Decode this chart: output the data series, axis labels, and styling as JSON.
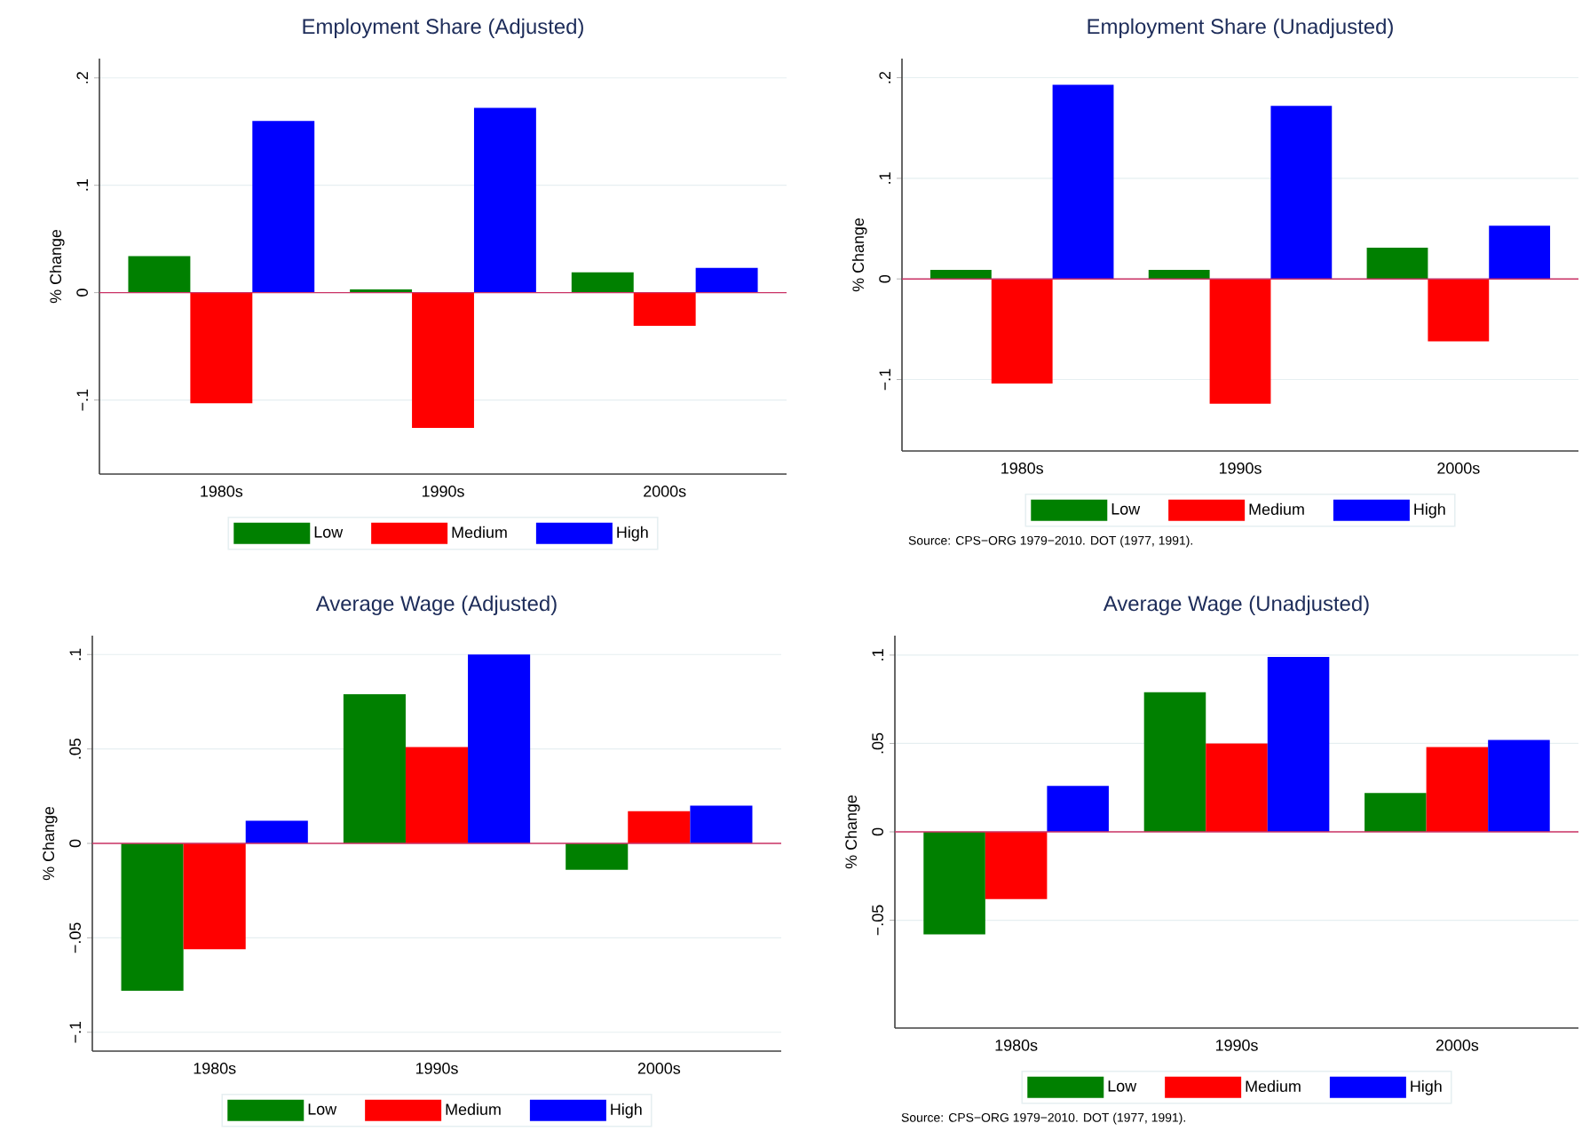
{
  "chart_data": [
    {
      "type": "bar",
      "title": "Employment Share (Adjusted)",
      "ylabel": "% Change",
      "categories": [
        "1980s",
        "1990s",
        "2000s"
      ],
      "series": [
        {
          "name": "Low",
          "color": "#008000",
          "values": [
            0.034,
            0.003,
            0.019
          ]
        },
        {
          "name": "Medium",
          "color": "#ff0000",
          "values": [
            -0.103,
            -0.126,
            -0.031
          ]
        },
        {
          "name": "High",
          "color": "#0000ff",
          "values": [
            0.16,
            0.172,
            0.023
          ]
        }
      ],
      "ylim": [
        -0.169,
        0.218
      ],
      "yticks": [
        {
          "value": -0.1,
          "label": "−.1"
        },
        0,
        {
          "value": 0.1,
          "label": ".1"
        },
        {
          "value": 0.2,
          "label": ".2"
        }
      ],
      "ref_lines": [
        {
          "axis": "y",
          "value": 0,
          "color": "#cc3366"
        }
      ],
      "grid": "y",
      "legend": "bottom"
    },
    {
      "type": "bar",
      "title": "Employment Share (Unadjusted)",
      "ylabel": "% Change",
      "categories": [
        "1980s",
        "1990s",
        "2000s"
      ],
      "series": [
        {
          "name": "Low",
          "color": "#008000",
          "values": [
            0.009,
            0.009,
            0.031
          ]
        },
        {
          "name": "Medium",
          "color": "#ff0000",
          "values": [
            -0.104,
            -0.124,
            -0.062
          ]
        },
        {
          "name": "High",
          "color": "#0000ff",
          "values": [
            0.193,
            0.172,
            0.053
          ]
        }
      ],
      "ylim": [
        -0.171,
        0.219
      ],
      "yticks": [
        {
          "value": -0.1,
          "label": "−.1"
        },
        0,
        {
          "value": 0.1,
          "label": ".1"
        },
        {
          "value": 0.2,
          "label": ".2"
        }
      ],
      "ref_lines": [
        {
          "axis": "y",
          "value": 0,
          "color": "#cc3366"
        }
      ],
      "grid": "y",
      "legend": "bottom",
      "annotations": [
        "Source: CPS−ORG 1979−2010. DOT (1977, 1991)."
      ]
    },
    {
      "type": "bar",
      "title": "Average Wage (Adjusted)",
      "ylabel": "% Change",
      "categories": [
        "1980s",
        "1990s",
        "2000s"
      ],
      "series": [
        {
          "name": "Low",
          "color": "#008000",
          "values": [
            -0.078,
            0.079,
            -0.014
          ]
        },
        {
          "name": "Medium",
          "color": "#ff0000",
          "values": [
            -0.056,
            0.051,
            0.017
          ]
        },
        {
          "name": "High",
          "color": "#0000ff",
          "values": [
            0.012,
            0.1,
            0.02
          ]
        }
      ],
      "ylim": [
        -0.11,
        0.11
      ],
      "yticks": [
        {
          "value": -0.1,
          "label": "−.1"
        },
        {
          "value": -0.05,
          "label": "−.05"
        },
        0,
        {
          "value": 0.05,
          "label": ".05"
        },
        {
          "value": 0.1,
          "label": ".1"
        }
      ],
      "ref_lines": [
        {
          "axis": "y",
          "value": 0,
          "color": "#cc3366"
        }
      ],
      "grid": "y",
      "legend": "bottom"
    },
    {
      "type": "bar",
      "title": "Average Wage (Unadjusted)",
      "ylabel": "% Change",
      "categories": [
        "1980s",
        "1990s",
        "2000s"
      ],
      "series": [
        {
          "name": "Low",
          "color": "#008000",
          "values": [
            -0.058,
            0.079,
            0.022
          ]
        },
        {
          "name": "Medium",
          "color": "#ff0000",
          "values": [
            -0.038,
            0.05,
            0.048
          ]
        },
        {
          "name": "High",
          "color": "#0000ff",
          "values": [
            0.026,
            0.099,
            0.052
          ]
        }
      ],
      "ylim": [
        -0.111,
        0.111
      ],
      "yticks": [
        {
          "value": -0.05,
          "label": "−.05"
        },
        0,
        {
          "value": 0.05,
          "label": ".05"
        },
        {
          "value": 0.1,
          "label": ".1"
        }
      ],
      "ref_lines": [
        {
          "axis": "y",
          "value": 0,
          "color": "#cc3366"
        }
      ],
      "grid": "y",
      "legend": "bottom",
      "annotations": [
        "Source: CPS−ORG 1979−2010. DOT (1977, 1991)."
      ]
    }
  ]
}
